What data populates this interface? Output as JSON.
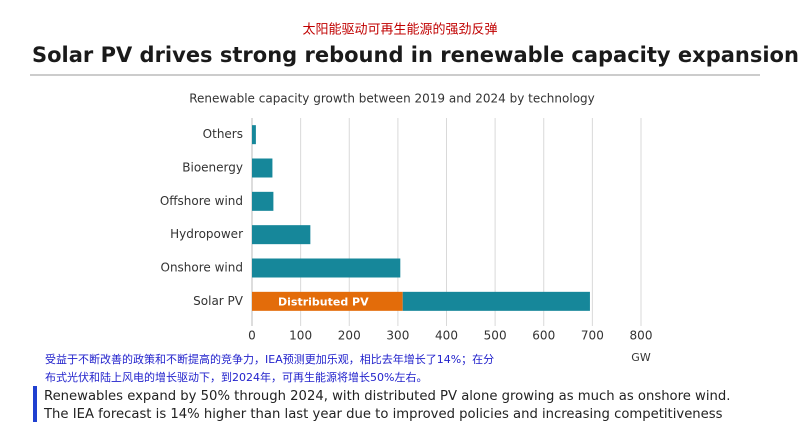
{
  "header": {
    "chinese_title": "太阳能驱动可再生能源的强劲反弹",
    "title": "Solar PV drives strong rebound in renewable capacity expansion"
  },
  "chart_data": {
    "type": "bar",
    "orientation": "horizontal",
    "stacked": true,
    "title": "Renewable capacity growth between 2019 and 2024 by technology",
    "categories": [
      "Others",
      "Bioenergy",
      "Offshore wind",
      "Hydropower",
      "Onshore wind",
      "Solar PV"
    ],
    "series": [
      {
        "name": "Distributed PV",
        "color": "#e36c0a",
        "values": [
          null,
          null,
          null,
          null,
          null,
          310
        ]
      },
      {
        "color": "#16879a",
        "values": [
          8,
          42,
          44,
          120,
          305,
          385
        ]
      }
    ],
    "xlim": [
      0,
      800
    ],
    "xticks": [
      0,
      100,
      200,
      300,
      400,
      500,
      600,
      700,
      800
    ],
    "xlabel": "GW",
    "grid": true
  },
  "chinese_note": [
    "受益于不断改善的政策和不断提高的竞争力，IEA预测更加乐观，相比去年增长了14%；在分",
    "布式光伏和陆上风电的增长驱动下，到2024年，可再生能源将增长50%左右。"
  ],
  "caption": [
    "Renewables expand by 50% through 2024, with distributed PV alone growing as much as onshore wind.",
    "The IEA forecast is 14% higher than last year due to improved policies and increasing competitiveness"
  ]
}
